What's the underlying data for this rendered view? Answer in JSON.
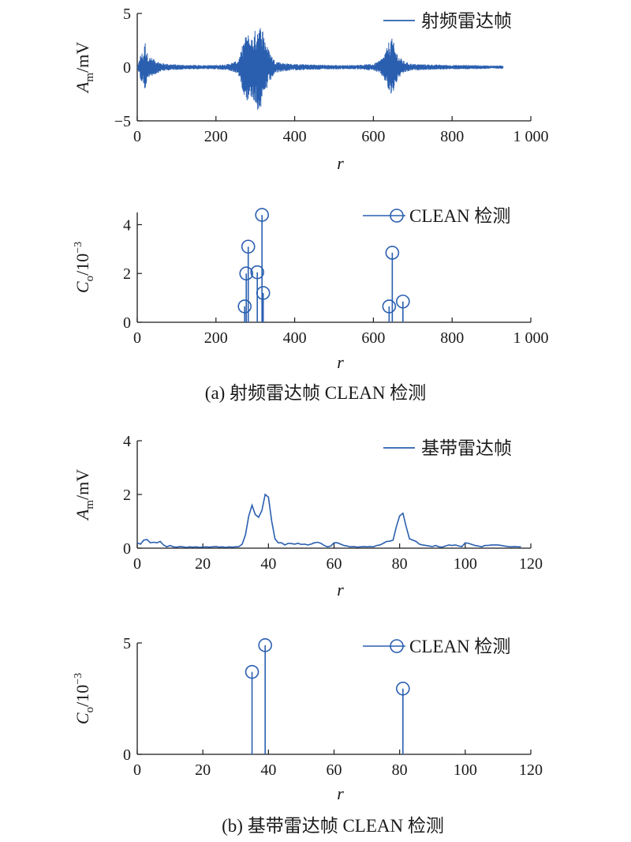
{
  "chart_data": [
    {
      "type": "line",
      "panel": "a-top",
      "series": [
        {
          "name": "射频雷达帧",
          "color": "#2a5fb0"
        }
      ],
      "x": [
        0,
        5,
        10,
        15,
        20,
        25,
        30,
        40,
        50,
        60,
        80,
        100,
        130,
        160,
        200,
        230,
        255,
        262,
        270,
        280,
        290,
        300,
        305,
        310,
        315,
        320,
        330,
        340,
        350,
        370,
        400,
        450,
        500,
        550,
        600,
        615,
        625,
        635,
        640,
        645,
        650,
        655,
        665,
        680,
        700,
        750,
        800,
        850,
        900,
        930
      ],
      "amplitude": [
        0,
        0.6,
        1.5,
        1.2,
        2.5,
        1.4,
        1.0,
        0.8,
        0.6,
        0.4,
        0.3,
        0.25,
        0.2,
        0.2,
        0.2,
        0.3,
        0.6,
        1.2,
        2.5,
        3.2,
        2.8,
        3.5,
        4.2,
        3.8,
        4.0,
        3.6,
        2.0,
        1.2,
        0.6,
        0.4,
        0.3,
        0.25,
        0.2,
        0.2,
        0.3,
        0.6,
        1.0,
        1.8,
        2.5,
        2.8,
        2.5,
        1.8,
        1.0,
        0.5,
        0.3,
        0.25,
        0.2,
        0.2,
        0.15,
        0.15
      ],
      "xlabel": "r",
      "ylabel": "Am/mV",
      "ylabel_main": "A",
      "ylabel_sub": "m",
      "ylabel_tail": "/mV",
      "xlim": [
        0,
        1000
      ],
      "ylim": [
        -5,
        5
      ],
      "xticks": [
        0,
        200,
        400,
        600,
        800,
        1000
      ],
      "xticklabels": [
        "0",
        "200",
        "400",
        "600",
        "800",
        "1 000"
      ],
      "yticks": [
        -5,
        0,
        5
      ],
      "yticklabels": [
        "−5",
        "0",
        "5"
      ],
      "legend": "top-right",
      "grid": false
    },
    {
      "type": "scatter",
      "panel": "a-bottom",
      "style": "stem",
      "series": [
        {
          "name": "CLEAN 检测",
          "color": "#2a5fb0",
          "x": [
            273,
            277,
            282,
            305,
            317,
            320,
            640,
            648,
            675
          ],
          "y": [
            0.65,
            2.0,
            3.1,
            2.05,
            4.4,
            1.2,
            0.65,
            2.85,
            0.85
          ]
        }
      ],
      "xlabel": "r",
      "ylabel": "Co/10−3",
      "ylabel_main": "C",
      "ylabel_sub": "o",
      "ylabel_tail": "/10",
      "ylabel_sup": "−3",
      "xlim": [
        0,
        1000
      ],
      "ylim": [
        0,
        4.5
      ],
      "xticks": [
        0,
        200,
        400,
        600,
        800,
        1000
      ],
      "xticklabels": [
        "0",
        "200",
        "400",
        "600",
        "800",
        "1 000"
      ],
      "yticks": [
        0,
        2,
        4
      ],
      "yticklabels": [
        "0",
        "2",
        "4"
      ],
      "legend": "top-right",
      "grid": false
    },
    {
      "type": "line",
      "panel": "b-top",
      "series": [
        {
          "name": "基带雷达帧",
          "color": "#2a5fb0",
          "x": [
            0,
            1,
            2,
            3,
            4,
            5,
            6,
            7,
            8,
            9,
            10,
            11,
            12,
            13,
            14,
            15,
            16,
            17,
            18,
            19,
            20,
            21,
            22,
            23,
            24,
            25,
            26,
            27,
            28,
            29,
            30,
            31,
            32,
            33,
            34,
            35,
            36,
            37,
            38,
            39,
            40,
            41,
            42,
            43,
            44,
            45,
            46,
            47,
            48,
            49,
            50,
            51,
            52,
            53,
            54,
            55,
            56,
            57,
            58,
            59,
            60,
            61,
            62,
            63,
            64,
            65,
            66,
            67,
            68,
            69,
            70,
            71,
            72,
            73,
            74,
            75,
            76,
            77,
            78,
            79,
            80,
            81,
            82,
            83,
            84,
            85,
            86,
            87,
            88,
            89,
            90,
            91,
            92,
            93,
            94,
            95,
            96,
            97,
            98,
            99,
            100,
            101,
            102,
            103,
            104,
            105,
            106,
            107,
            108,
            109,
            110,
            111,
            112,
            113,
            114,
            115,
            116,
            117
          ],
          "y": [
            0.2,
            0.15,
            0.3,
            0.32,
            0.2,
            0.22,
            0.2,
            0.25,
            0.12,
            0.05,
            0.1,
            0.05,
            0.04,
            0.06,
            0.05,
            0.03,
            0.05,
            0.04,
            0.05,
            0.03,
            0.04,
            0.05,
            0.04,
            0.05,
            0.06,
            0.04,
            0.05,
            0.03,
            0.05,
            0.04,
            0.05,
            0.06,
            0.15,
            0.5,
            1.2,
            1.6,
            1.25,
            1.15,
            1.4,
            2.0,
            1.9,
            1.0,
            0.35,
            0.2,
            0.2,
            0.12,
            0.18,
            0.17,
            0.15,
            0.18,
            0.14,
            0.15,
            0.12,
            0.15,
            0.2,
            0.22,
            0.18,
            0.1,
            0.05,
            0.08,
            0.2,
            0.2,
            0.15,
            0.1,
            0.08,
            0.05,
            0.06,
            0.04,
            0.05,
            0.06,
            0.05,
            0.06,
            0.05,
            0.1,
            0.12,
            0.18,
            0.25,
            0.26,
            0.3,
            0.8,
            1.2,
            1.3,
            0.8,
            0.35,
            0.3,
            0.25,
            0.15,
            0.12,
            0.1,
            0.08,
            0.06,
            0.1,
            0.05,
            0.04,
            0.08,
            0.12,
            0.1,
            0.12,
            0.08,
            0.06,
            0.2,
            0.18,
            0.14,
            0.1,
            0.08,
            0.05,
            0.1,
            0.1,
            0.12,
            0.12,
            0.12,
            0.1,
            0.08,
            0.06,
            0.05,
            0.06,
            0.05,
            0.05
          ]
        }
      ],
      "xlabel": "r",
      "ylabel": "Am/mV",
      "ylabel_main": "A",
      "ylabel_sub": "m",
      "ylabel_tail": "/mV",
      "xlim": [
        0,
        120
      ],
      "ylim": [
        0,
        4
      ],
      "xticks": [
        0,
        20,
        40,
        60,
        80,
        100,
        120
      ],
      "xticklabels": [
        "0",
        "20",
        "40",
        "60",
        "80",
        "100",
        "120"
      ],
      "yticks": [
        0,
        2,
        4
      ],
      "yticklabels": [
        "0",
        "2",
        "4"
      ],
      "legend": "top-right",
      "grid": false
    },
    {
      "type": "scatter",
      "panel": "b-bottom",
      "style": "stem",
      "series": [
        {
          "name": "CLEAN 检测",
          "color": "#2a5fb0",
          "x": [
            35,
            39,
            81
          ],
          "y": [
            3.7,
            4.9,
            2.95
          ]
        }
      ],
      "xlabel": "r",
      "ylabel": "Co/10−3",
      "ylabel_main": "C",
      "ylabel_sub": "o",
      "ylabel_tail": "/10",
      "ylabel_sup": "−3",
      "xlim": [
        0,
        120
      ],
      "ylim": [
        0,
        5
      ],
      "xticks": [
        0,
        20,
        40,
        60,
        80,
        100,
        120
      ],
      "xticklabels": [
        "0",
        "20",
        "40",
        "60",
        "80",
        "100",
        "120"
      ],
      "yticks": [
        0,
        5
      ],
      "yticklabels": [
        "0",
        "5"
      ],
      "legend": "top-right",
      "grid": false
    }
  ],
  "captions": {
    "a": "(a) 射频雷达帧 CLEAN 检测",
    "b": "(b) 基带雷达帧 CLEAN 检测"
  }
}
